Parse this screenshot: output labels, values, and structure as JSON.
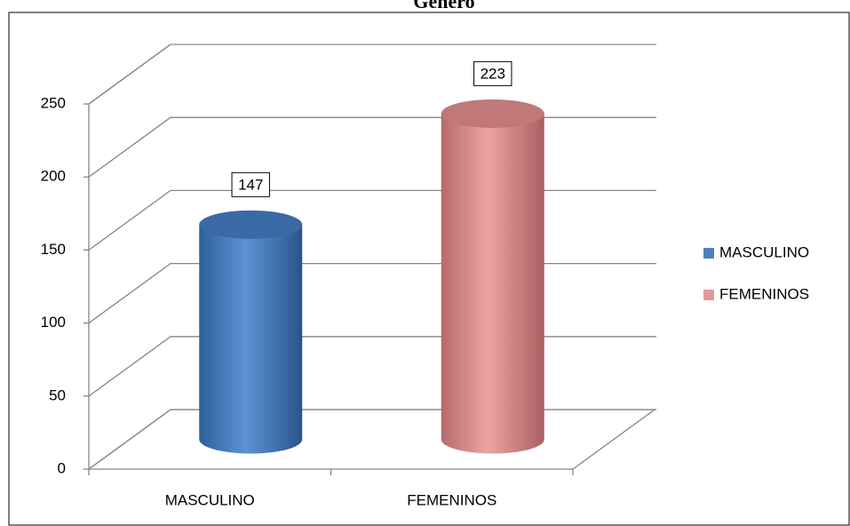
{
  "chart_data": {
    "type": "bar3d",
    "title": "Género",
    "categories": [
      "MASCULINO",
      "FEMENINOS"
    ],
    "series": [
      {
        "name": "MASCULINO",
        "color": "#4f81bd",
        "values": [
          147,
          null
        ]
      },
      {
        "name": "FEMENINOS",
        "color": "#e6999a",
        "values": [
          null,
          223
        ]
      }
    ],
    "ylim": [
      0,
      250
    ],
    "yticks": [
      0,
      50,
      100,
      150,
      200,
      250
    ],
    "grid": true,
    "legend": "right"
  }
}
